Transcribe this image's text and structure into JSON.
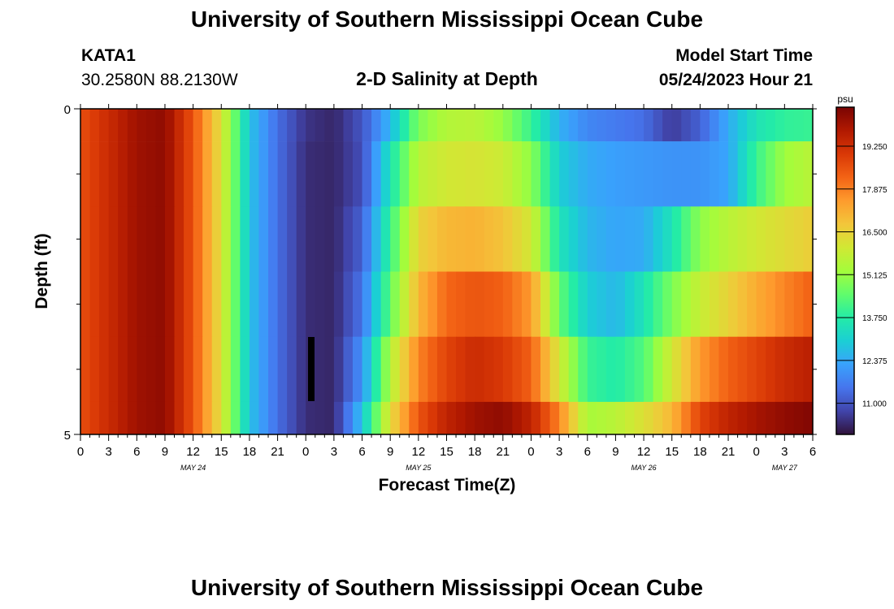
{
  "page": {
    "title": "University of Southern Mississippi Ocean Cube",
    "footer_title": "University of Southern Mississippi Ocean Cube",
    "station_id": "KATA1",
    "station_coords": "30.2580N  88.2130W",
    "chart_title": "2-D Salinity at Depth",
    "model_start_label": "Model Start Time",
    "model_start_value": "05/24/2023 Hour 21"
  },
  "chart_data": {
    "type": "heatmap",
    "title": "2-D Salinity at Depth",
    "xlabel": "Forecast Time(Z)",
    "ylabel": "Depth (ft)",
    "ylim": [
      0,
      5
    ],
    "y_tick_labels": [
      "0",
      "5"
    ],
    "x_tick_labels": [
      "0",
      "3",
      "6",
      "9",
      "12",
      "15",
      "18",
      "21",
      "0",
      "3",
      "6",
      "9",
      "12",
      "15",
      "18",
      "21",
      "0",
      "3",
      "6",
      "9",
      "12",
      "15",
      "18",
      "21",
      "0",
      "3",
      "6"
    ],
    "date_labels": [
      "MAY 24",
      "MAY 25",
      "MAY 26",
      "MAY 27"
    ],
    "date_label_hours": [
      12,
      36,
      60,
      75
    ],
    "x_hours_range": [
      0,
      78
    ],
    "unit": "psu",
    "colorbar_ticks": [
      11.0,
      12.375,
      13.75,
      15.125,
      16.5,
      17.875,
      19.25
    ],
    "colorbar_tick_labels": [
      "11.000",
      "12.375",
      "13.750",
      "15.125",
      "16.500",
      "17.875",
      "19.250"
    ],
    "vmin": 10.0,
    "vmax": 20.5,
    "colormap": [
      "#30123b",
      "#4145ab",
      "#4675ed",
      "#39a2fc",
      "#1bcfd4",
      "#24eca6",
      "#61fc6c",
      "#a4fc3b",
      "#d1e834",
      "#f3c63a",
      "#fe9b2d",
      "#f36315",
      "#d93806",
      "#b11901",
      "#7a0403"
    ],
    "layers": [
      {
        "depth_range": [
          0,
          0.5
        ],
        "times": [
          0,
          3,
          6,
          9,
          12,
          15,
          18,
          21,
          24,
          27,
          30,
          33,
          36,
          39,
          42,
          45,
          48,
          51,
          54,
          57,
          60,
          63,
          66,
          69,
          72,
          75,
          78
        ],
        "salinity": [
          18.6,
          19.3,
          20.0,
          20.2,
          18.5,
          16.2,
          12.8,
          11.4,
          10.5,
          10.3,
          11.0,
          12.6,
          14.8,
          15.5,
          15.6,
          15.1,
          14.0,
          12.5,
          11.8,
          11.6,
          11.4,
          10.6,
          11.2,
          12.4,
          13.5,
          13.9,
          14.0
        ]
      },
      {
        "depth_range": [
          0.5,
          1.5
        ],
        "times": [
          0,
          3,
          6,
          9,
          12,
          15,
          18,
          21,
          24,
          27,
          30,
          33,
          36,
          39,
          42,
          45,
          48,
          51,
          54,
          57,
          60,
          63,
          66,
          69,
          72,
          75,
          78
        ],
        "salinity": [
          18.6,
          19.3,
          20.0,
          20.2,
          18.5,
          16.2,
          12.8,
          11.4,
          10.4,
          10.3,
          10.9,
          13.5,
          15.6,
          16.0,
          16.1,
          15.9,
          15.0,
          13.0,
          12.4,
          12.2,
          12.1,
          12.0,
          12.0,
          12.3,
          14.0,
          15.2,
          15.6
        ]
      },
      {
        "depth_range": [
          1.5,
          2.5
        ],
        "times": [
          0,
          3,
          6,
          9,
          12,
          15,
          18,
          21,
          24,
          27,
          30,
          33,
          36,
          39,
          42,
          45,
          48,
          51,
          54,
          57,
          60,
          63,
          66,
          69,
          72,
          75,
          78
        ],
        "salinity": [
          18.6,
          19.3,
          20.0,
          20.2,
          18.5,
          16.2,
          12.8,
          11.4,
          10.4,
          10.3,
          11.2,
          14.0,
          16.5,
          17.0,
          17.1,
          16.8,
          16.0,
          13.5,
          12.6,
          12.3,
          12.4,
          13.5,
          15.0,
          15.6,
          16.0,
          16.3,
          16.6
        ]
      },
      {
        "depth_range": [
          2.5,
          3.5
        ],
        "times": [
          0,
          3,
          6,
          9,
          12,
          15,
          18,
          21,
          24,
          27,
          30,
          33,
          36,
          39,
          42,
          45,
          48,
          51,
          54,
          57,
          60,
          63,
          66,
          69,
          72,
          75,
          78
        ],
        "salinity": [
          18.6,
          19.3,
          20.0,
          20.2,
          18.5,
          16.2,
          12.8,
          11.4,
          10.4,
          10.3,
          11.5,
          14.5,
          17.0,
          18.2,
          18.5,
          18.3,
          17.5,
          14.5,
          13.0,
          12.6,
          13.5,
          14.8,
          15.8,
          16.5,
          17.2,
          17.8,
          18.3
        ]
      },
      {
        "depth_range": [
          3.5,
          4.5
        ],
        "times": [
          0,
          3,
          6,
          9,
          12,
          15,
          18,
          21,
          24,
          27,
          30,
          33,
          36,
          39,
          42,
          45,
          48,
          51,
          54,
          57,
          60,
          63,
          66,
          69,
          72,
          75,
          78
        ],
        "salinity": [
          18.6,
          19.3,
          20.0,
          20.2,
          18.5,
          16.2,
          12.8,
          11.4,
          10.4,
          10.3,
          12.0,
          15.5,
          17.8,
          18.8,
          19.3,
          19.0,
          18.3,
          16.0,
          14.0,
          13.7,
          14.3,
          16.0,
          17.5,
          18.3,
          18.8,
          19.3,
          19.6
        ]
      },
      {
        "depth_range": [
          4.5,
          5.0
        ],
        "times": [
          0,
          3,
          6,
          9,
          12,
          15,
          18,
          21,
          24,
          27,
          30,
          33,
          36,
          39,
          42,
          45,
          48,
          51,
          54,
          57,
          60,
          63,
          66,
          69,
          72,
          75,
          78
        ],
        "salinity": [
          18.6,
          19.3,
          20.0,
          20.2,
          18.5,
          16.2,
          12.8,
          11.4,
          10.4,
          10.3,
          12.8,
          16.3,
          18.5,
          19.5,
          20.0,
          20.2,
          19.5,
          17.8,
          15.3,
          15.6,
          16.2,
          17.0,
          18.8,
          19.5,
          19.9,
          20.2,
          20.4
        ]
      }
    ]
  }
}
